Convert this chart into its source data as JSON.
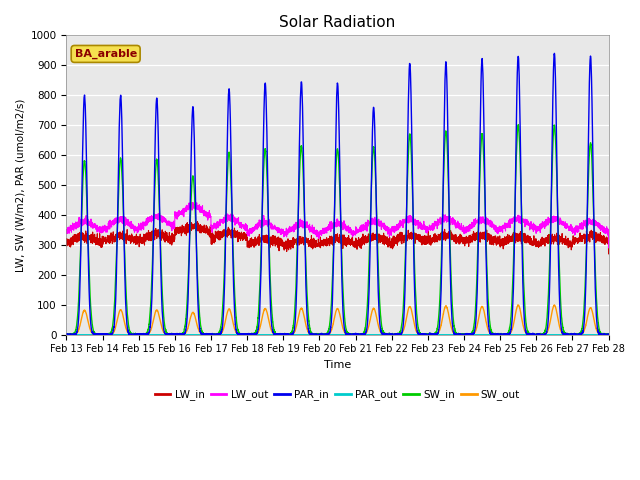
{
  "title": "Solar Radiation",
  "ylabel": "LW, SW (W/m2), PAR (umol/m2/s)",
  "xlabel": "Time",
  "annotation": "BA_arable",
  "ylim": [
    0,
    1000
  ],
  "yticks": [
    0,
    100,
    200,
    300,
    400,
    500,
    600,
    700,
    800,
    900,
    1000
  ],
  "xtick_labels": [
    "Feb 13",
    "Feb 14",
    "Feb 15",
    "Feb 16",
    "Feb 17",
    "Feb 18",
    "Feb 19",
    "Feb 20",
    "Feb 21",
    "Feb 22",
    "Feb 23",
    "Feb 24",
    "Feb 25",
    "Feb 26",
    "Feb 27",
    "Feb 28"
  ],
  "series": {
    "LW_in": {
      "color": "#cc0000",
      "lw": 0.8
    },
    "LW_out": {
      "color": "#ff00ff",
      "lw": 0.8
    },
    "PAR_in": {
      "color": "#0000ee",
      "lw": 1.0
    },
    "PAR_out": {
      "color": "#00cccc",
      "lw": 0.8
    },
    "SW_in": {
      "color": "#00cc00",
      "lw": 1.0
    },
    "SW_out": {
      "color": "#ff9900",
      "lw": 1.0
    }
  },
  "background_color": "#e8e8e8",
  "grid_color": "#ffffff",
  "title_fontsize": 11,
  "par_peaks": [
    800,
    800,
    790,
    760,
    820,
    840,
    845,
    840,
    760,
    905,
    910,
    920,
    930,
    940,
    930
  ],
  "sw_peaks": [
    580,
    590,
    585,
    530,
    610,
    620,
    630,
    620,
    625,
    670,
    680,
    670,
    700,
    700,
    640
  ],
  "lw_in_base": [
    305,
    310,
    315,
    340,
    320,
    300,
    295,
    300,
    305,
    310,
    310,
    310,
    305,
    300,
    310
  ],
  "lw_out_base": [
    340,
    345,
    355,
    390,
    350,
    335,
    330,
    332,
    338,
    345,
    348,
    344,
    348,
    346,
    338
  ]
}
